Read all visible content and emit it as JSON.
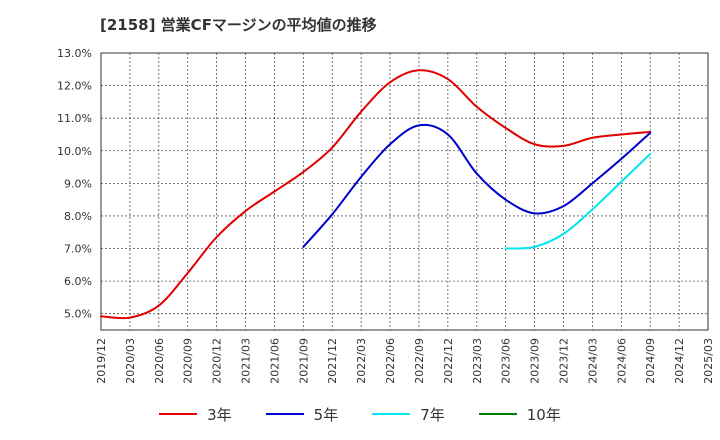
{
  "title": "[2158]  営業CFマージンの平均値の推移",
  "chart_data": {
    "type": "line",
    "title": "[2158]  営業CFマージンの平均値の推移",
    "xlabel": "",
    "ylabel": "",
    "y_tick_labels": [
      "5.0%",
      "6.0%",
      "7.0%",
      "8.0%",
      "9.0%",
      "10.0%",
      "11.0%",
      "12.0%",
      "13.0%"
    ],
    "ylim": [
      4.5,
      13.0
    ],
    "x_tick_labels": [
      "2019/12",
      "2020/03",
      "2020/06",
      "2020/09",
      "2020/12",
      "2021/03",
      "2021/06",
      "2021/09",
      "2021/12",
      "2022/03",
      "2022/06",
      "2022/09",
      "2022/12",
      "2023/03",
      "2023/06",
      "2023/09",
      "2023/12",
      "2024/03",
      "2024/06",
      "2024/09",
      "2024/12",
      "2025/03"
    ],
    "grid": true,
    "legend_position": "bottom",
    "series": [
      {
        "name": "3年",
        "color": "#e00000",
        "x": [
          "2019/12",
          "2020/03",
          "2020/06",
          "2020/09",
          "2020/12",
          "2021/03",
          "2021/06",
          "2021/09",
          "2021/12",
          "2022/03",
          "2022/06",
          "2022/09",
          "2022/12",
          "2023/03",
          "2023/06",
          "2023/09",
          "2023/12",
          "2024/03",
          "2024/06",
          "2024/09"
        ],
        "values": [
          4.92,
          4.88,
          5.25,
          6.25,
          7.35,
          8.15,
          8.75,
          9.35,
          10.1,
          11.2,
          12.1,
          12.47,
          12.2,
          11.35,
          10.7,
          10.2,
          10.15,
          10.4,
          10.5,
          10.58
        ]
      },
      {
        "name": "5年",
        "color": "#0000cc",
        "x": [
          "2021/09",
          "2021/12",
          "2022/03",
          "2022/06",
          "2022/09",
          "2022/12",
          "2023/03",
          "2023/06",
          "2023/09",
          "2023/12",
          "2024/03",
          "2024/06",
          "2024/09"
        ],
        "values": [
          7.05,
          8.05,
          9.2,
          10.2,
          10.78,
          10.5,
          9.3,
          8.5,
          8.08,
          8.3,
          9.0,
          9.75,
          10.55
        ]
      },
      {
        "name": "7年",
        "color": "#00e5ee",
        "x": [
          "2023/06",
          "2023/09",
          "2023/12",
          "2024/03",
          "2024/06",
          "2024/09"
        ],
        "values": [
          7.0,
          7.05,
          7.45,
          8.2,
          9.05,
          9.9
        ]
      },
      {
        "name": "10年",
        "color": "#008000",
        "x": [],
        "values": []
      }
    ]
  }
}
